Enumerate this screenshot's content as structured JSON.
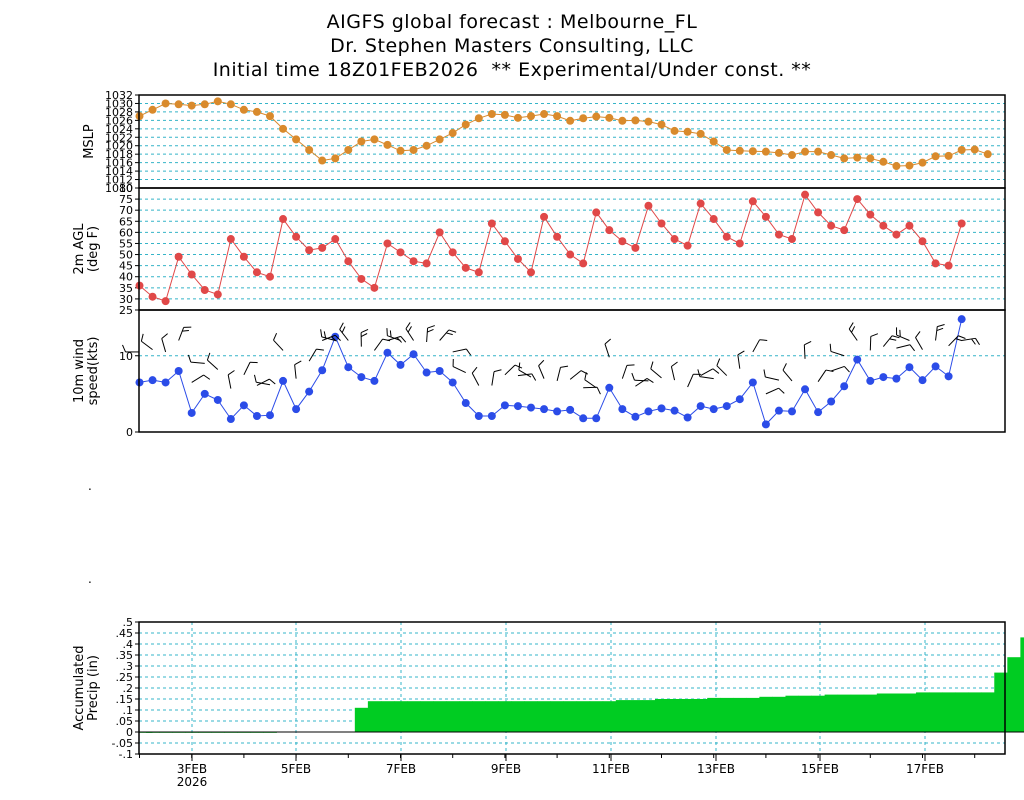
{
  "title_lines": [
    "AIGFS global forecast : Melbourne_FL",
    "Dr. Stephen Masters Consulting, LLC",
    "Initial time 18Z01FEB2026  ** Experimental/Under const. **"
  ],
  "chart_data": [
    {
      "type": "line",
      "id": "mslp",
      "ylabel": [
        "MSLP"
      ],
      "ylim": [
        1010,
        1032
      ],
      "yticks": [
        1010,
        1012,
        1014,
        1016,
        1018,
        1020,
        1022,
        1024,
        1026,
        1028,
        1030,
        1032
      ],
      "grid": true,
      "color": "#d98a2c",
      "x_start": "01FEB2026 18Z",
      "x_step_hours": 6,
      "values": [
        1027,
        1028.5,
        1030,
        1029.8,
        1029.5,
        1029.8,
        1030.5,
        1029.8,
        1028.5,
        1028,
        1027,
        1024,
        1021.5,
        1019,
        1016.5,
        1017,
        1019,
        1021,
        1021.5,
        1020.2,
        1018.8,
        1019,
        1020,
        1021.5,
        1023,
        1025,
        1026.5,
        1027.5,
        1027.3,
        1026.6,
        1027,
        1027.5,
        1027,
        1025.9,
        1026.5,
        1026.9,
        1026.6,
        1025.9,
        1026,
        1025.7,
        1025,
        1023.5,
        1023.3,
        1022.8,
        1021,
        1019,
        1018.8,
        1018.7,
        1018.6,
        1018.3,
        1017.8,
        1018.6,
        1018.6,
        1017.8,
        1017,
        1017.2,
        1017,
        1016.2,
        1015.2,
        1015.3,
        1016,
        1017.5,
        1017.6,
        1019,
        1019.1,
        1018
      ]
    },
    {
      "type": "line",
      "id": "temp",
      "ylabel": [
        "2m AGL",
        "(deg F)"
      ],
      "ylim": [
        25,
        80
      ],
      "yticks": [
        25,
        30,
        35,
        40,
        45,
        50,
        55,
        60,
        65,
        70,
        75,
        80
      ],
      "grid": true,
      "color": "#e04848",
      "x_start": "01FEB2026 18Z",
      "x_step_hours": 6,
      "values": [
        36,
        31,
        29,
        49,
        41,
        34,
        32,
        57,
        49,
        42,
        40,
        66,
        58,
        52,
        53,
        57,
        47,
        39,
        35,
        55,
        51,
        47,
        46,
        60,
        51,
        44,
        42,
        64,
        56,
        48,
        42,
        67,
        58,
        50,
        46,
        69,
        61,
        56,
        53,
        72,
        64,
        57,
        54,
        73,
        66,
        58,
        55,
        74,
        67,
        59,
        57,
        77,
        69,
        63,
        61,
        75,
        68,
        63,
        59,
        63,
        56,
        46,
        45,
        64
      ]
    },
    {
      "type": "line",
      "id": "wind",
      "ylabel": [
        "10m wind",
        "speed(kts)"
      ],
      "ylim": [
        0,
        16
      ],
      "yticks": [
        0,
        10
      ],
      "grid": true,
      "color": "#2b4ce8",
      "x_start": "01FEB2026 18Z",
      "x_step_hours": 6,
      "values": [
        6.5,
        6.8,
        6.5,
        8,
        2.5,
        5,
        4.2,
        1.7,
        3.5,
        2.1,
        2.2,
        6.7,
        3,
        5.3,
        8.1,
        12.5,
        8.5,
        7.2,
        6.7,
        10.4,
        8.8,
        10.2,
        7.8,
        8,
        6.5,
        3.8,
        2.1,
        2.1,
        3.5,
        3.4,
        3.2,
        3,
        2.7,
        2.9,
        1.8,
        1.8,
        5.8,
        3,
        2,
        2.7,
        3.1,
        2.8,
        1.9,
        3.4,
        3,
        3.4,
        4.3,
        6.5,
        1,
        2.8,
        2.7,
        5.6,
        2.6,
        4,
        6,
        9.5,
        6.7,
        7.2,
        7,
        8.5,
        6.8,
        8.6,
        7.3,
        14.8
      ]
    },
    {
      "type": "area",
      "id": "precip",
      "ylabel": [
        "Accumulated",
        "Precip (in)"
      ],
      "ylim": [
        -0.1,
        0.5
      ],
      "yticks": [
        -0.1,
        -0.05,
        0,
        0.05,
        0.1,
        0.15,
        0.2,
        0.25,
        0.3,
        0.35,
        0.4,
        0.45,
        0.5
      ],
      "grid": true,
      "color": "#00cc22",
      "x_start": "01FEB2026 18Z",
      "x_step_hours": 6,
      "values": [
        0,
        0,
        0,
        0,
        0,
        0,
        0,
        0,
        0,
        0,
        0,
        0.002,
        0.002,
        0.002,
        0.002,
        0.002,
        0.002,
        0.11,
        0.14,
        0.14,
        0.14,
        0.14,
        0.14,
        0.14,
        0.14,
        0.14,
        0.14,
        0.14,
        0.14,
        0.14,
        0.14,
        0.14,
        0.14,
        0.14,
        0.14,
        0.14,
        0.14,
        0.145,
        0.145,
        0.145,
        0.15,
        0.15,
        0.15,
        0.15,
        0.155,
        0.155,
        0.155,
        0.155,
        0.16,
        0.16,
        0.165,
        0.165,
        0.165,
        0.17,
        0.17,
        0.17,
        0.17,
        0.175,
        0.175,
        0.175,
        0.18,
        0.18,
        0.18,
        0.18,
        0.18,
        0.18,
        0.27,
        0.34,
        0.43,
        0.45,
        0.455,
        0.455,
        0.455,
        0.455,
        0.455,
        0.455,
        0.455
      ]
    }
  ],
  "x_axis": {
    "ticks": [
      "3FEB",
      "5FEB",
      "7FEB",
      "9FEB",
      "11FEB",
      "13FEB",
      "15FEB",
      "17FEB"
    ],
    "year_label": "2026"
  },
  "stray_marks": [
    ".",
    "."
  ]
}
